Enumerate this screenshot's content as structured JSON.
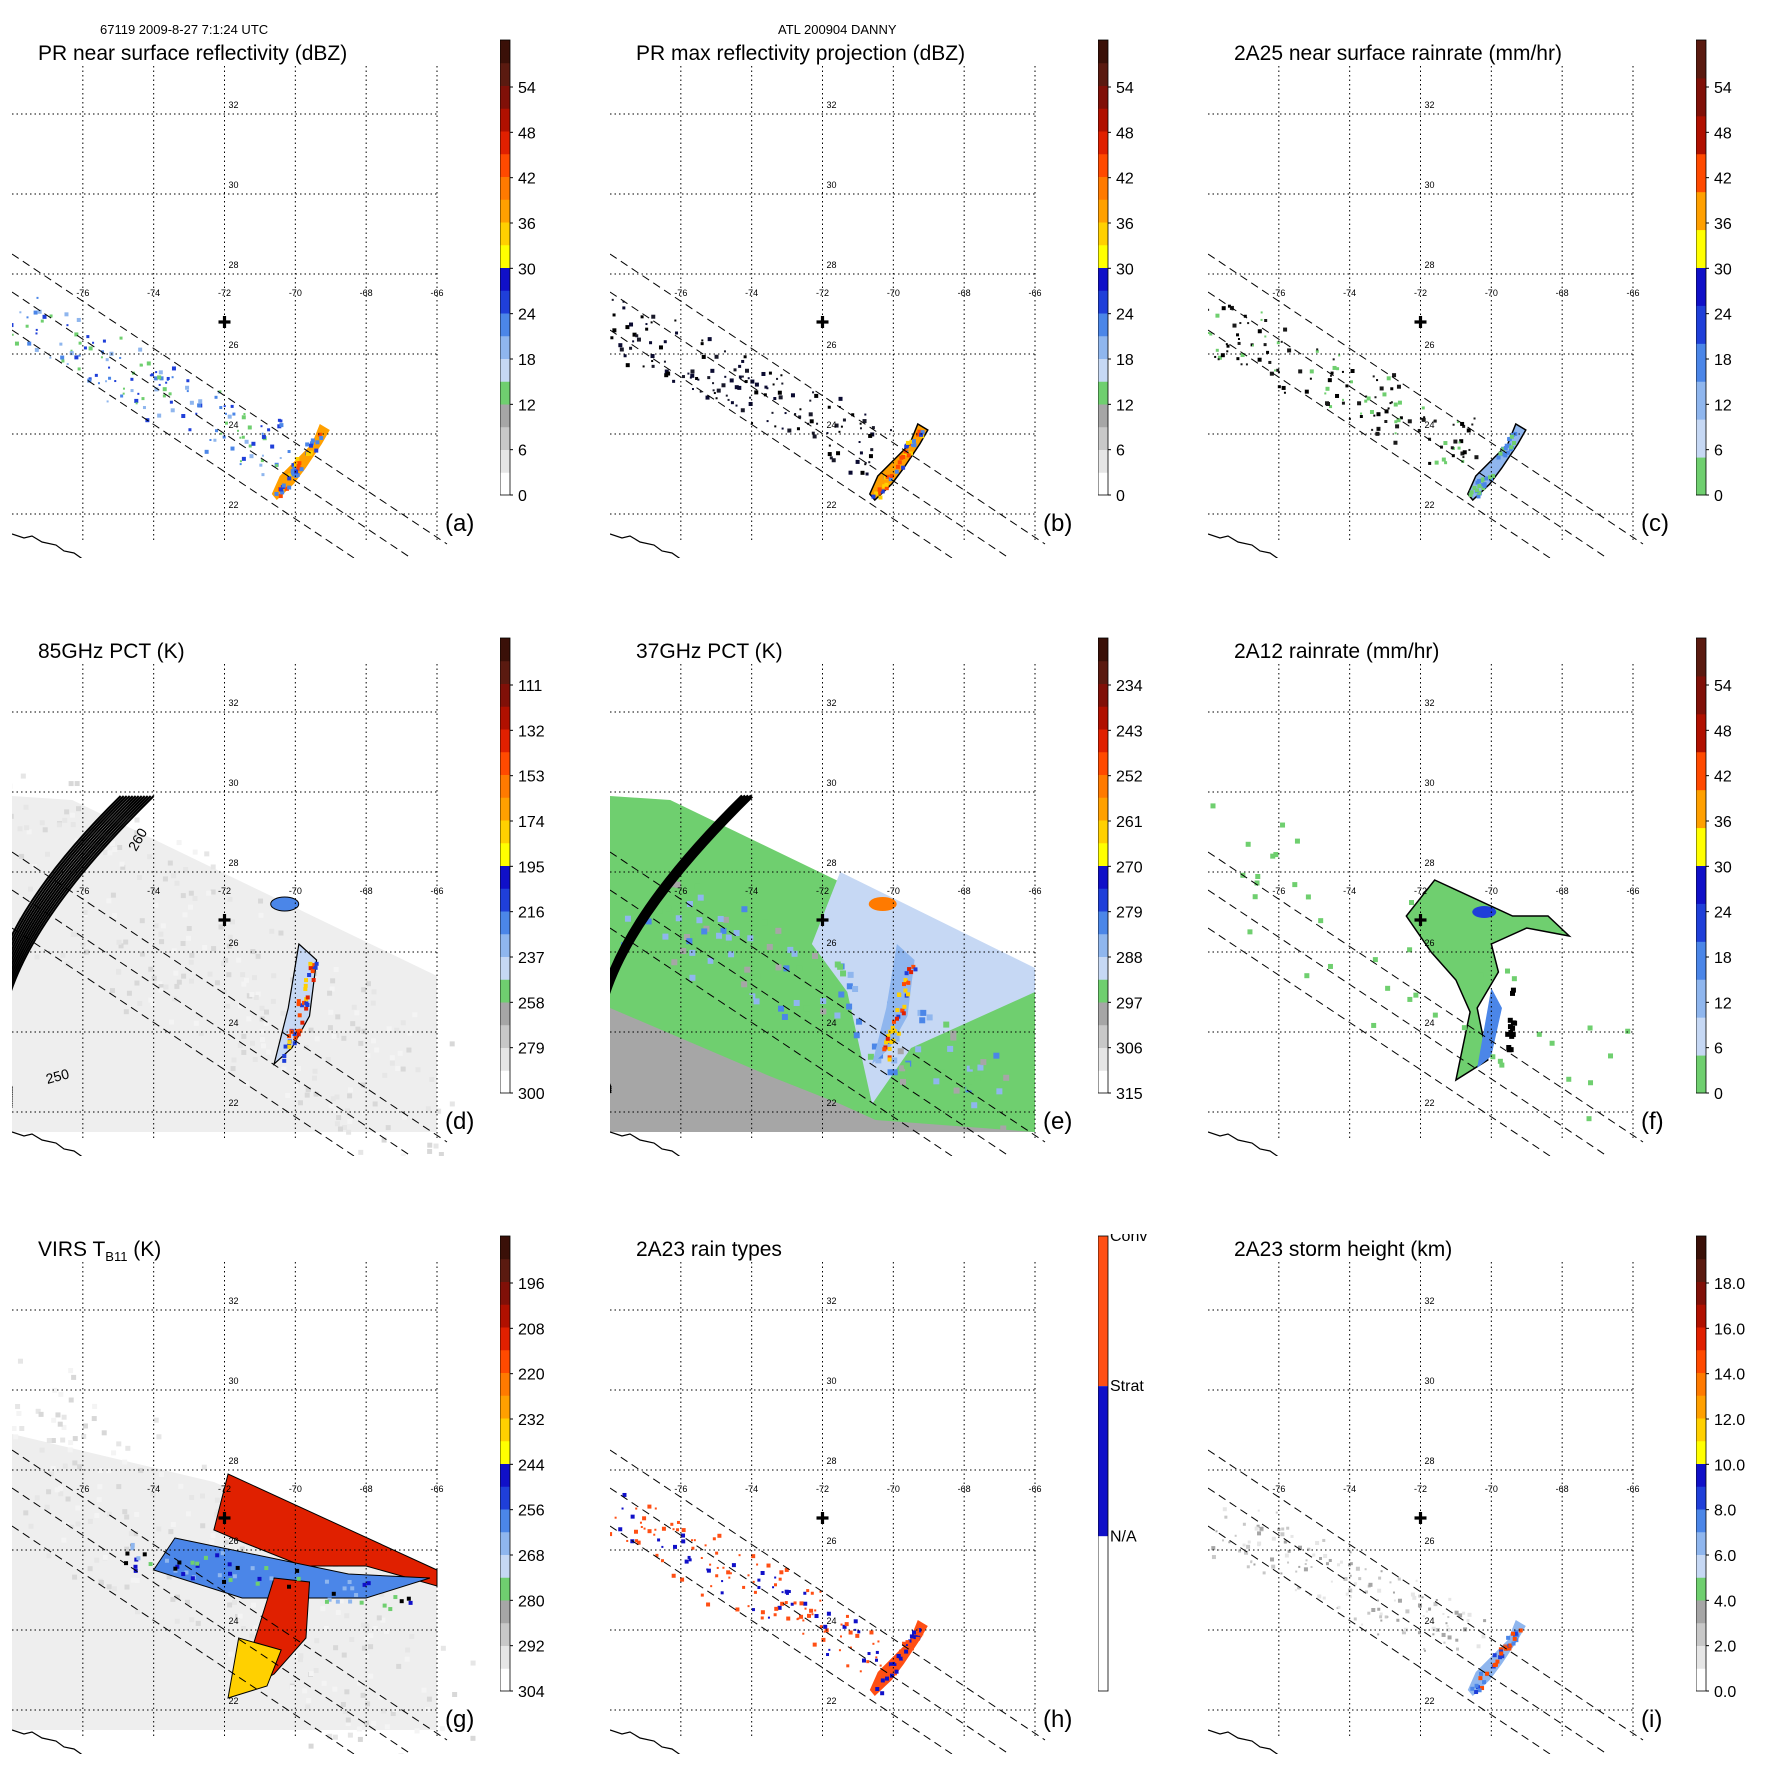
{
  "header": {
    "orbit_time": "67119 2009-8-27 7:1:24 UTC",
    "storm": "ATL 200904 DANNY"
  },
  "colors": {
    "grid": "#000000",
    "swath": "#000000",
    "center_marker": "#000000"
  },
  "chart_data": [
    {
      "id": "a",
      "type": "heatmap",
      "title": "PR near surface reflectivity (dBZ)",
      "panel_label": "(a)",
      "lon_ticks": [
        "-76",
        "-74",
        "-72",
        "-70",
        "-68",
        "-66"
      ],
      "lat_ticks": [
        "32",
        "30",
        "28",
        "26",
        "24",
        "22"
      ],
      "colorbar": {
        "min": 0,
        "max": 60,
        "ticks": [
          "54",
          "48",
          "42",
          "36",
          "30",
          "24",
          "18",
          "12",
          "6",
          "0"
        ],
        "colors": [
          "#ffffff",
          "#e6e6e6",
          "#c8c8c8",
          "#a6a6a6",
          "#6fcf6f",
          "#c6d8f4",
          "#8fb6ee",
          "#4b86e8",
          "#1f3fd9",
          "#1010c8",
          "#ffff00",
          "#ffd000",
          "#ffa000",
          "#ff7a00",
          "#ff4a00",
          "#e02000",
          "#b01000",
          "#801008",
          "#5a1a10",
          "#3a1008"
        ]
      },
      "swath": "pr",
      "field": "pr_light",
      "hot": true
    },
    {
      "id": "b",
      "type": "heatmap",
      "title": "PR max reflectivity projection (dBZ)",
      "panel_label": "(b)",
      "lon_ticks": [
        "-76",
        "-74",
        "-72",
        "-70",
        "-68",
        "-66"
      ],
      "lat_ticks": [
        "32",
        "30",
        "28",
        "26",
        "24",
        "22"
      ],
      "colorbar": {
        "min": 0,
        "max": 60,
        "ticks": [
          "54",
          "48",
          "42",
          "36",
          "30",
          "24",
          "18",
          "12",
          "6",
          "0"
        ],
        "colors": [
          "#ffffff",
          "#e6e6e6",
          "#c8c8c8",
          "#a6a6a6",
          "#6fcf6f",
          "#c6d8f4",
          "#8fb6ee",
          "#4b86e8",
          "#1f3fd9",
          "#1010c8",
          "#ffff00",
          "#ffd000",
          "#ffa000",
          "#ff7a00",
          "#ff4a00",
          "#e02000",
          "#b01000",
          "#801008",
          "#5a1a10",
          "#3a1008"
        ]
      },
      "swath": "pr",
      "field": "pr_contour",
      "hot": true
    },
    {
      "id": "c",
      "type": "heatmap",
      "title": "2A25 near surface rainrate (mm/hr)",
      "panel_label": "(c)",
      "lon_ticks": [
        "-76",
        "-74",
        "-72",
        "-70",
        "-68",
        "-66"
      ],
      "lat_ticks": [
        "32",
        "30",
        "28",
        "26",
        "24",
        "22"
      ],
      "colorbar": {
        "min": 0,
        "max": 60,
        "ticks": [
          "54",
          "48",
          "42",
          "36",
          "30",
          "24",
          "18",
          "12",
          "6",
          "0"
        ],
        "colors": [
          "#6fcf6f",
          "#c6d8f4",
          "#8fb6ee",
          "#4b86e8",
          "#1f3fd9",
          "#1010c8",
          "#ffff00",
          "#ffa000",
          "#ff4a00",
          "#b01000",
          "#801008",
          "#5a1a10"
        ]
      },
      "swath": "pr",
      "field": "pr_rain",
      "hot": false
    },
    {
      "id": "d",
      "type": "heatmap",
      "title": "85GHz PCT (K)",
      "panel_label": "(d)",
      "lon_ticks": [
        "-76",
        "-74",
        "-72",
        "-70",
        "-68",
        "-66"
      ],
      "lat_ticks": [
        "32",
        "30",
        "28",
        "26",
        "24",
        "22"
      ],
      "colorbar": {
        "min": 300,
        "max": 90,
        "ticks": [
          "111",
          "132",
          "153",
          "174",
          "195",
          "216",
          "237",
          "258",
          "279",
          "300"
        ],
        "colors": [
          "#ffffff",
          "#e6e6e6",
          "#c8c8c8",
          "#a6a6a6",
          "#6fcf6f",
          "#c6d8f4",
          "#8fb6ee",
          "#4b86e8",
          "#1f3fd9",
          "#1010c8",
          "#ffff00",
          "#ffd000",
          "#ffa000",
          "#ff7a00",
          "#ff4a00",
          "#e02000",
          "#b01000",
          "#801008",
          "#5a1a10",
          "#3a1008"
        ]
      },
      "swath": "tmi",
      "field": "pct85",
      "arc_labels": [
        "260",
        "250"
      ]
    },
    {
      "id": "e",
      "type": "heatmap",
      "title": "37GHz PCT (K)",
      "panel_label": "(e)",
      "lon_ticks": [
        "-76",
        "-74",
        "-72",
        "-70",
        "-68",
        "-66"
      ],
      "lat_ticks": [
        "32",
        "30",
        "28",
        "26",
        "24",
        "22"
      ],
      "colorbar": {
        "min": 315,
        "max": 225,
        "ticks": [
          "234",
          "243",
          "252",
          "261",
          "270",
          "279",
          "288",
          "297",
          "306",
          "315"
        ],
        "colors": [
          "#ffffff",
          "#e6e6e6",
          "#c8c8c8",
          "#a6a6a6",
          "#6fcf6f",
          "#c6d8f4",
          "#8fb6ee",
          "#4b86e8",
          "#1f3fd9",
          "#1010c8",
          "#ffff00",
          "#ffd000",
          "#ffa000",
          "#ff7a00",
          "#ff4a00",
          "#e02000",
          "#b01000",
          "#801008",
          "#5a1a10",
          "#3a1008"
        ]
      },
      "swath": "tmi",
      "field": "pct37"
    },
    {
      "id": "f",
      "type": "heatmap",
      "title": "2A12 rainrate (mm/hr)",
      "panel_label": "(f)",
      "lon_ticks": [
        "-76",
        "-74",
        "-72",
        "-70",
        "-68",
        "-66"
      ],
      "lat_ticks": [
        "32",
        "30",
        "28",
        "26",
        "24",
        "22"
      ],
      "colorbar": {
        "min": 0,
        "max": 60,
        "ticks": [
          "54",
          "48",
          "42",
          "36",
          "30",
          "24",
          "18",
          "12",
          "6",
          "0"
        ],
        "colors": [
          "#6fcf6f",
          "#c6d8f4",
          "#8fb6ee",
          "#4b86e8",
          "#1f3fd9",
          "#1010c8",
          "#ffff00",
          "#ffa000",
          "#ff4a00",
          "#b01000",
          "#801008",
          "#5a1a10"
        ]
      },
      "swath": "pr",
      "field": "rain2a12"
    },
    {
      "id": "g",
      "type": "heatmap",
      "title": "VIRS T",
      "title_sub": "B11",
      "title_suffix": " (K)",
      "panel_label": "(g)",
      "lon_ticks": [
        "-76",
        "-74",
        "-72",
        "-70",
        "-68",
        "-66"
      ],
      "lat_ticks": [
        "32",
        "30",
        "28",
        "26",
        "24",
        "22"
      ],
      "colorbar": {
        "min": 304,
        "max": 184,
        "ticks": [
          "196",
          "208",
          "220",
          "232",
          "244",
          "256",
          "268",
          "280",
          "292",
          "304"
        ],
        "colors": [
          "#ffffff",
          "#e6e6e6",
          "#c8c8c8",
          "#a6a6a6",
          "#6fcf6f",
          "#c6d8f4",
          "#8fb6ee",
          "#4b86e8",
          "#1f3fd9",
          "#1010c8",
          "#ffff00",
          "#ffd000",
          "#ffa000",
          "#ff7a00",
          "#ff4a00",
          "#e02000",
          "#b01000",
          "#801008",
          "#5a1a10",
          "#3a1008"
        ]
      },
      "swath": "tmi",
      "field": "virs"
    },
    {
      "id": "h",
      "type": "heatmap",
      "title": "2A23 rain types",
      "panel_label": "(h)",
      "lon_ticks": [
        "-76",
        "-74",
        "-72",
        "-70",
        "-68",
        "-66"
      ],
      "lat_ticks": [
        "32",
        "30",
        "28",
        "26",
        "24",
        "22"
      ],
      "colorbar": {
        "categorical": true,
        "ticks": [
          "Conv",
          "Strat",
          "N/A"
        ],
        "colors": [
          "#ff4f14",
          "#1010c8",
          "#ffffff"
        ]
      },
      "swath": "pr",
      "field": "raintype"
    },
    {
      "id": "i",
      "type": "heatmap",
      "title": "2A23 storm height (km)",
      "panel_label": "(i)",
      "lon_ticks": [
        "-76",
        "-74",
        "-72",
        "-70",
        "-68",
        "-66"
      ],
      "lat_ticks": [
        "32",
        "30",
        "28",
        "26",
        "24",
        "22"
      ],
      "colorbar": {
        "min": 0,
        "max": 20,
        "ticks": [
          "18.0",
          "16.0",
          "14.0",
          "12.0",
          "10.0",
          "8.0",
          "6.0",
          "4.0",
          "2.0",
          "0.0"
        ],
        "colors": [
          "#ffffff",
          "#e6e6e6",
          "#c8c8c8",
          "#a6a6a6",
          "#6fcf6f",
          "#c6d8f4",
          "#8fb6ee",
          "#4b86e8",
          "#1f3fd9",
          "#1010c8",
          "#ffff00",
          "#ffd000",
          "#ffa000",
          "#ff7a00",
          "#ff4a00",
          "#e02000",
          "#b01000",
          "#801008",
          "#5a1a10",
          "#3a1008"
        ]
      },
      "swath": "pr",
      "field": "stormht"
    }
  ]
}
